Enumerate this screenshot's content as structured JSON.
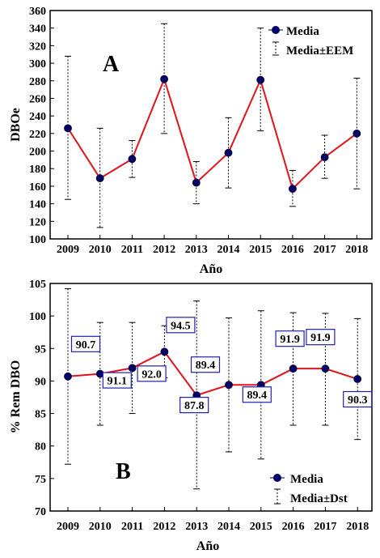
{
  "chart_data": [
    {
      "type": "line",
      "panel_letter": "A",
      "xlabel": "Año",
      "ylabel": "DBOe",
      "categories": [
        "2009",
        "2010",
        "2011",
        "2012",
        "2013",
        "2014",
        "2015",
        "2016",
        "2017",
        "2018"
      ],
      "ylim": [
        100,
        360
      ],
      "yticks": [
        100,
        120,
        140,
        160,
        180,
        200,
        220,
        240,
        260,
        280,
        300,
        320,
        340,
        360
      ],
      "grid": false,
      "legend_position": "top-right",
      "series": [
        {
          "name": "Media",
          "values": [
            226,
            169,
            191,
            282,
            164,
            198,
            281,
            157,
            193,
            220
          ]
        }
      ],
      "error_bars": {
        "name": "Media±EEM",
        "lower": [
          145,
          113,
          170,
          220,
          140,
          158,
          223,
          137,
          169,
          157
        ],
        "upper": [
          308,
          226,
          212,
          345,
          188,
          238,
          340,
          178,
          218,
          283
        ]
      },
      "colors": {
        "line": "#e0131b",
        "marker": "#000066"
      }
    },
    {
      "type": "line",
      "panel_letter": "B",
      "xlabel": "Año",
      "ylabel": "% Rem DBO",
      "categories": [
        "2009",
        "2010",
        "2011",
        "2012",
        "2013",
        "2014",
        "2015",
        "2016",
        "2017",
        "2018"
      ],
      "ylim": [
        70,
        105
      ],
      "yticks": [
        70,
        75,
        80,
        85,
        90,
        95,
        100,
        105
      ],
      "grid": false,
      "legend_position": "bottom-right",
      "series": [
        {
          "name": "Media",
          "values": [
            90.7,
            91.1,
            92.0,
            94.5,
            87.8,
            89.4,
            89.4,
            91.9,
            91.9,
            90.3
          ]
        }
      ],
      "data_labels": [
        "90.7",
        "91.1",
        "92.0",
        "94.5",
        "87.8",
        "89.4",
        "89.4",
        "91.9",
        "91.9",
        "90.3"
      ],
      "error_bars": {
        "name": "Media±Dst",
        "lower": [
          77.2,
          83.2,
          85.0,
          90.5,
          73.4,
          79.1,
          78.0,
          83.2,
          83.2,
          81.0
        ],
        "upper": [
          104.2,
          99.0,
          99.0,
          98.5,
          102.3,
          99.7,
          100.8,
          100.5,
          100.4,
          99.6
        ]
      },
      "colors": {
        "line": "#e0131b",
        "marker": "#000066",
        "label_border": "#1f1fb0"
      }
    }
  ]
}
